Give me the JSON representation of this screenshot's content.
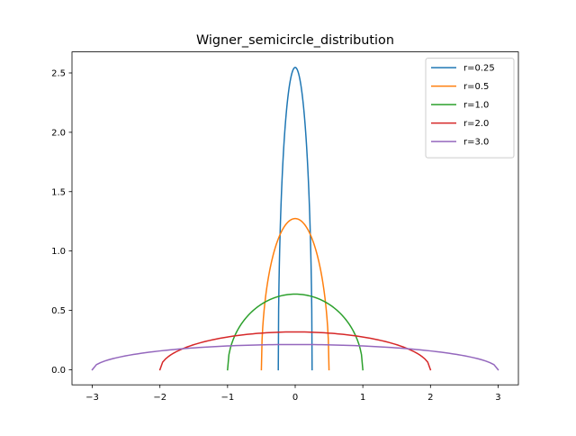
{
  "chart_data": {
    "type": "line",
    "title": "Wigner_semicircle_distribution",
    "xlabel": "",
    "ylabel": "",
    "xlim": [
      -3.3,
      3.3
    ],
    "ylim": [
      -0.1275,
      2.6775
    ],
    "xticks": [
      -3,
      -2,
      -1,
      0,
      1,
      2,
      3
    ],
    "xtick_labels": [
      "−3",
      "−2",
      "−1",
      "0",
      "1",
      "2",
      "3"
    ],
    "yticks": [
      0.0,
      0.5,
      1.0,
      1.5,
      2.0,
      2.5
    ],
    "ytick_labels": [
      "0.0",
      "0.5",
      "1.0",
      "1.5",
      "2.0",
      "2.5"
    ],
    "grid": false,
    "legend_position": "upper right",
    "function": "f(x) = 2/(pi*r^2) * sqrt(r^2 - x^2), for -r <= x <= r",
    "samples_per_series": 100,
    "series": [
      {
        "name": "r=0.25",
        "r": 0.25,
        "color": "#1f77b4",
        "peak": 2.546
      },
      {
        "name": "r=0.5",
        "r": 0.5,
        "color": "#ff7f0e",
        "peak": 1.273
      },
      {
        "name": "r=1.0",
        "r": 1.0,
        "color": "#2ca02c",
        "peak": 0.637
      },
      {
        "name": "r=2.0",
        "r": 2.0,
        "color": "#d62728",
        "peak": 0.318
      },
      {
        "name": "r=3.0",
        "r": 3.0,
        "color": "#9467bd",
        "peak": 0.212
      }
    ]
  }
}
